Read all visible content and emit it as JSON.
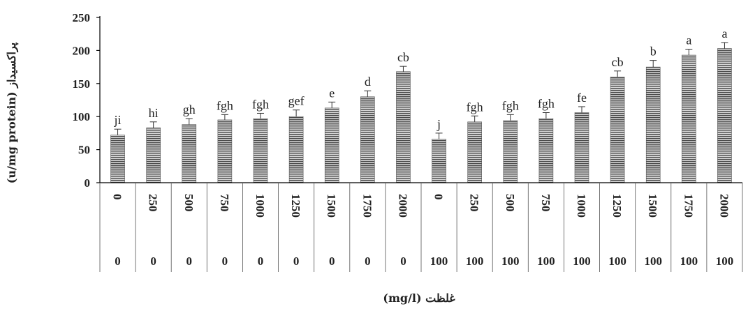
{
  "chart_data": {
    "type": "bar",
    "ylabel": "پراکسیداز (u/mg protein)",
    "xlabel": "غلظت (mg/l)",
    "ylim": [
      0,
      250
    ],
    "yticks": [
      0,
      50,
      100,
      150,
      200,
      250
    ],
    "grid": false,
    "categories_level1": [
      "0",
      "250",
      "500",
      "750",
      "1000",
      "1250",
      "1500",
      "1750",
      "2000",
      "0",
      "250",
      "500",
      "750",
      "1000",
      "1250",
      "1500",
      "1750",
      "2000"
    ],
    "categories_level2": [
      "0",
      "0",
      "0",
      "0",
      "0",
      "0",
      "0",
      "0",
      "0",
      "100",
      "100",
      "100",
      "100",
      "100",
      "100",
      "100",
      "100",
      "100"
    ],
    "values": [
      72,
      83,
      88,
      95,
      97,
      100,
      113,
      130,
      168,
      66,
      92,
      94,
      97,
      106,
      160,
      175,
      193,
      203
    ],
    "errors": [
      9,
      9,
      9,
      8,
      8,
      10,
      9,
      9,
      8,
      9,
      9,
      9,
      9,
      9,
      9,
      10,
      9,
      9
    ],
    "significance": [
      "ji",
      "hi",
      "gh",
      "fgh",
      "fgh",
      "gef",
      "e",
      "d",
      "cb",
      "j",
      "fgh",
      "fgh",
      "fgh",
      "fe",
      "cb",
      "b",
      "a",
      "a"
    ]
  }
}
